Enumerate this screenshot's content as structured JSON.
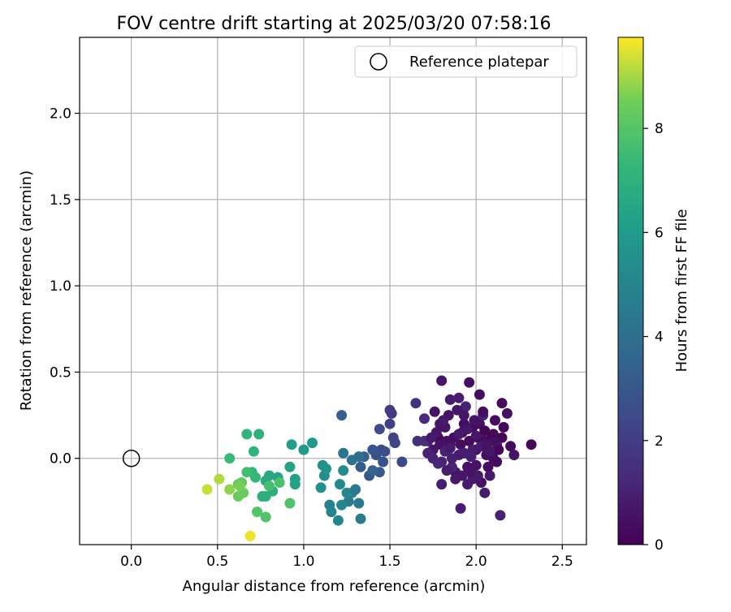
{
  "chart_data": {
    "type": "scatter",
    "title": "FOV centre drift starting at 2025/03/20 07:58:16",
    "xlabel": "Angular distance from reference (arcmin)",
    "ylabel": "Rotation from reference (arcmin)",
    "xlim": [
      -0.3,
      2.64
    ],
    "ylim": [
      -0.5,
      2.44
    ],
    "xticks": [
      "0.0",
      "0.5",
      "1.0",
      "1.5",
      "2.0",
      "2.5"
    ],
    "yticks": [
      "0.0",
      "0.5",
      "1.0",
      "1.5",
      "2.0"
    ],
    "grid": true,
    "legend": {
      "position": "top-right",
      "entries": [
        "Reference platepar"
      ]
    },
    "colorbar": {
      "label": "Hours from first FF file",
      "colormap": "viridis",
      "range": [
        0,
        9.75
      ],
      "ticks": [
        "0",
        "2",
        "4",
        "6",
        "8"
      ]
    },
    "reference_point": {
      "x": 0.0,
      "y": 0.0
    },
    "series": [
      {
        "points": [
          [
            1.78,
            0.12,
            0.2
          ],
          [
            1.85,
            0.08,
            0.3
          ],
          [
            1.92,
            0.15,
            0.25
          ],
          [
            2.0,
            0.05,
            0.4
          ],
          [
            2.05,
            0.1,
            0.35
          ],
          [
            1.95,
            -0.05,
            0.5
          ],
          [
            2.1,
            0.0,
            0.45
          ],
          [
            1.88,
            -0.08,
            0.6
          ],
          [
            2.02,
            0.2,
            0.55
          ],
          [
            1.75,
            0.05,
            0.7
          ],
          [
            2.15,
            0.12,
            0.15
          ],
          [
            1.98,
            -0.12,
            0.8
          ],
          [
            1.82,
            0.18,
            0.65
          ],
          [
            2.08,
            -0.1,
            0.75
          ],
          [
            1.9,
            0.02,
            0.85
          ],
          [
            1.72,
            0.1,
            0.9
          ],
          [
            2.12,
            0.08,
            0.95
          ],
          [
            1.8,
            -0.02,
            1.0
          ],
          [
            2.04,
            0.25,
            1.05
          ],
          [
            1.94,
            0.3,
            1.1
          ],
          [
            2.18,
            0.26,
            0.5
          ],
          [
            2.22,
            0.02,
            0.6
          ],
          [
            2.32,
            0.08,
            0.2
          ],
          [
            2.15,
            0.32,
            0.3
          ],
          [
            2.02,
            0.37,
            0.4
          ],
          [
            1.96,
            0.44,
            0.45
          ],
          [
            1.8,
            0.45,
            0.7
          ],
          [
            1.85,
            0.34,
            0.8
          ],
          [
            1.9,
            0.35,
            0.9
          ],
          [
            1.86,
            -0.05,
            1.2
          ],
          [
            1.7,
            0.23,
            1.3
          ],
          [
            1.66,
            0.1,
            1.4
          ],
          [
            1.7,
            0.1,
            1.5
          ],
          [
            1.65,
            0.32,
            1.6
          ],
          [
            1.72,
            0.03,
            1.0
          ],
          [
            2.2,
            0.07,
            0.35
          ],
          [
            2.1,
            0.14,
            0.25
          ],
          [
            1.98,
            0.18,
            0.3
          ],
          [
            1.93,
            0.2,
            0.4
          ],
          [
            1.84,
            0.25,
            0.55
          ],
          [
            1.76,
            0.27,
            0.6
          ],
          [
            1.79,
            0.2,
            0.65
          ],
          [
            2.06,
            0.02,
            0.45
          ],
          [
            2.0,
            -0.04,
            0.55
          ],
          [
            1.97,
            -0.08,
            0.6
          ],
          [
            1.92,
            -0.1,
            0.7
          ],
          [
            1.88,
            -0.12,
            0.75
          ],
          [
            1.83,
            -0.07,
            0.85
          ],
          [
            1.8,
            -0.15,
            0.9
          ],
          [
            2.03,
            -0.14,
            0.5
          ],
          [
            2.07,
            -0.05,
            0.4
          ],
          [
            2.12,
            -0.02,
            0.3
          ],
          [
            2.13,
            0.05,
            0.2
          ],
          [
            2.09,
            0.12,
            0.15
          ],
          [
            2.05,
            0.16,
            0.1
          ],
          [
            2.01,
            0.12,
            0.2
          ],
          [
            1.96,
            0.1,
            0.3
          ],
          [
            1.91,
            0.08,
            0.35
          ],
          [
            1.87,
            0.12,
            0.4
          ],
          [
            1.83,
            0.1,
            0.45
          ],
          [
            1.79,
            0.08,
            0.55
          ],
          [
            1.77,
            0.15,
            0.65
          ],
          [
            1.74,
            0.12,
            0.75
          ],
          [
            1.81,
            0.22,
            0.8
          ],
          [
            1.89,
            0.28,
            0.7
          ],
          [
            1.93,
            0.25,
            0.6
          ],
          [
            1.99,
            0.22,
            0.5
          ],
          [
            2.04,
            0.27,
            0.4
          ],
          [
            2.11,
            0.22,
            0.3
          ],
          [
            2.16,
            0.18,
            0.2
          ],
          [
            1.91,
            -0.29,
            0.9
          ],
          [
            2.14,
            -0.33,
            1.0
          ],
          [
            2.05,
            -0.2,
            0.8
          ],
          [
            1.95,
            -0.15,
            0.85
          ],
          [
            2.01,
            -0.1,
            0.75
          ],
          [
            1.86,
            0.0,
            0.95
          ],
          [
            1.93,
            0.03,
            0.9
          ],
          [
            1.98,
            0.05,
            0.85
          ],
          [
            2.03,
            0.07,
            0.8
          ],
          [
            2.08,
            0.04,
            0.7
          ],
          [
            1.82,
            0.04,
            1.05
          ],
          [
            1.75,
            0.0,
            1.1
          ],
          [
            1.78,
            -0.03,
            1.15
          ],
          [
            2.0,
            0.13,
            0.65
          ],
          [
            1.95,
            0.17,
            0.7
          ],
          [
            1.9,
            0.14,
            0.75
          ],
          [
            1.85,
            0.06,
            0.8
          ],
          [
            2.06,
            0.08,
            0.55
          ],
          [
            2.11,
            0.1,
            0.45
          ],
          [
            1.97,
            0.01,
            0.95
          ],
          [
            1.5,
            0.28,
            2.0
          ],
          [
            1.5,
            0.2,
            2.1
          ],
          [
            1.52,
            0.12,
            2.2
          ],
          [
            1.53,
            0.09,
            2.3
          ],
          [
            1.57,
            -0.02,
            2.4
          ],
          [
            1.44,
            0.17,
            2.5
          ],
          [
            1.45,
            0.05,
            2.6
          ],
          [
            1.42,
            0.02,
            2.7
          ],
          [
            1.46,
            -0.02,
            2.8
          ],
          [
            1.4,
            0.05,
            2.9
          ],
          [
            1.38,
            -0.1,
            3.0
          ],
          [
            1.44,
            -0.08,
            3.1
          ],
          [
            1.33,
            -0.05,
            3.2
          ],
          [
            1.22,
            0.25,
            3.3
          ],
          [
            1.35,
            0.01,
            3.4
          ],
          [
            1.4,
            -0.07,
            3.5
          ],
          [
            1.51,
            0.26,
            1.9
          ],
          [
            1.47,
            0.04,
            2.65
          ],
          [
            1.33,
            -0.35,
            4.6
          ],
          [
            1.26,
            -0.25,
            4.6
          ],
          [
            1.28,
            -0.2,
            4.7
          ],
          [
            1.32,
            -0.26,
            4.5
          ],
          [
            1.15,
            -0.27,
            4.8
          ],
          [
            1.16,
            -0.31,
            4.9
          ],
          [
            1.2,
            -0.36,
            5.0
          ],
          [
            1.22,
            -0.27,
            5.1
          ],
          [
            1.25,
            -0.2,
            5.1
          ],
          [
            1.21,
            -0.15,
            5.2
          ],
          [
            1.23,
            -0.07,
            5.3
          ],
          [
            1.12,
            -0.1,
            5.4
          ],
          [
            1.11,
            -0.04,
            5.5
          ],
          [
            1.1,
            -0.17,
            5.5
          ],
          [
            1.13,
            -0.06,
            5.6
          ],
          [
            1.3,
            -0.18,
            4.4
          ],
          [
            1.28,
            -0.01,
            4.2
          ],
          [
            1.23,
            0.03,
            4.3
          ],
          [
            1.32,
            0.01,
            4.0
          ],
          [
            1.05,
            0.09,
            5.9
          ],
          [
            1.0,
            0.05,
            6.0
          ],
          [
            0.93,
            0.08,
            6.1
          ],
          [
            0.95,
            -0.12,
            6.2
          ],
          [
            0.95,
            -0.15,
            6.3
          ],
          [
            0.92,
            -0.05,
            6.4
          ],
          [
            0.85,
            -0.11,
            6.5
          ],
          [
            0.8,
            -0.1,
            6.6
          ],
          [
            0.78,
            -0.13,
            6.7
          ],
          [
            0.82,
            -0.19,
            6.8
          ],
          [
            0.78,
            -0.22,
            6.9
          ],
          [
            0.76,
            -0.22,
            6.9
          ],
          [
            0.74,
            0.14,
            7.0
          ],
          [
            0.67,
            0.14,
            7.1
          ],
          [
            0.7,
            -0.08,
            7.2
          ],
          [
            0.72,
            -0.11,
            7.3
          ],
          [
            0.71,
            0.04,
            7.1
          ],
          [
            0.57,
            0.0,
            7.4
          ],
          [
            0.67,
            -0.08,
            7.6
          ],
          [
            0.8,
            -0.16,
            7.7
          ],
          [
            0.86,
            -0.14,
            7.8
          ],
          [
            0.92,
            -0.26,
            7.9
          ],
          [
            0.78,
            -0.34,
            7.9
          ],
          [
            0.73,
            -0.31,
            8.0
          ],
          [
            0.64,
            -0.14,
            8.2
          ],
          [
            0.62,
            -0.15,
            8.3
          ],
          [
            0.65,
            -0.2,
            8.4
          ],
          [
            0.62,
            -0.22,
            8.4
          ],
          [
            0.63,
            -0.16,
            8.6
          ],
          [
            0.57,
            -0.18,
            8.8
          ],
          [
            0.51,
            -0.12,
            9.1
          ],
          [
            0.44,
            -0.18,
            9.3
          ],
          [
            0.69,
            -0.45,
            9.6
          ]
        ]
      }
    ]
  }
}
